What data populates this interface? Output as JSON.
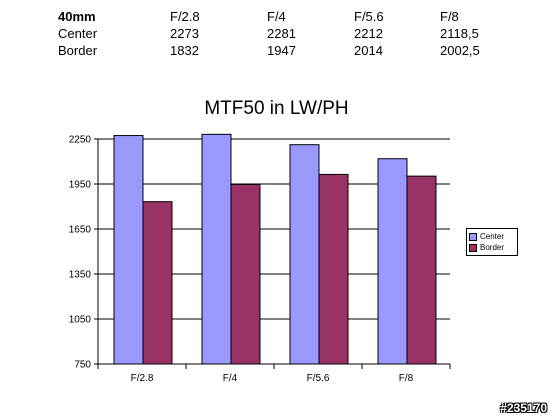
{
  "table": {
    "header": [
      "40mm",
      "F/2.8",
      "F/4",
      "F/5.6",
      "F/8"
    ],
    "rows": [
      [
        "Center",
        "2273",
        "2281",
        "2212",
        "2118,5"
      ],
      [
        "Border",
        "1832",
        "1947",
        "2014",
        "2002,5"
      ]
    ]
  },
  "watermark": "#235170",
  "colors": {
    "center": "#9999ff",
    "border": "#993366",
    "grid": "#000000"
  },
  "chart_data": {
    "type": "bar",
    "title": "MTF50 in LW/PH",
    "categories": [
      "F/2.8",
      "F/4",
      "F/5.6",
      "F/8"
    ],
    "series": [
      {
        "name": "Center",
        "values": [
          2273,
          2281,
          2212,
          2118.5
        ]
      },
      {
        "name": "Border",
        "values": [
          1832,
          1947,
          2014,
          2002.5
        ]
      }
    ],
    "xlabel": "",
    "ylabel": "",
    "ylim": [
      750,
      2250
    ],
    "yticks": [
      750,
      1050,
      1350,
      1650,
      1950,
      2250
    ],
    "grid": true,
    "legend": "right"
  }
}
